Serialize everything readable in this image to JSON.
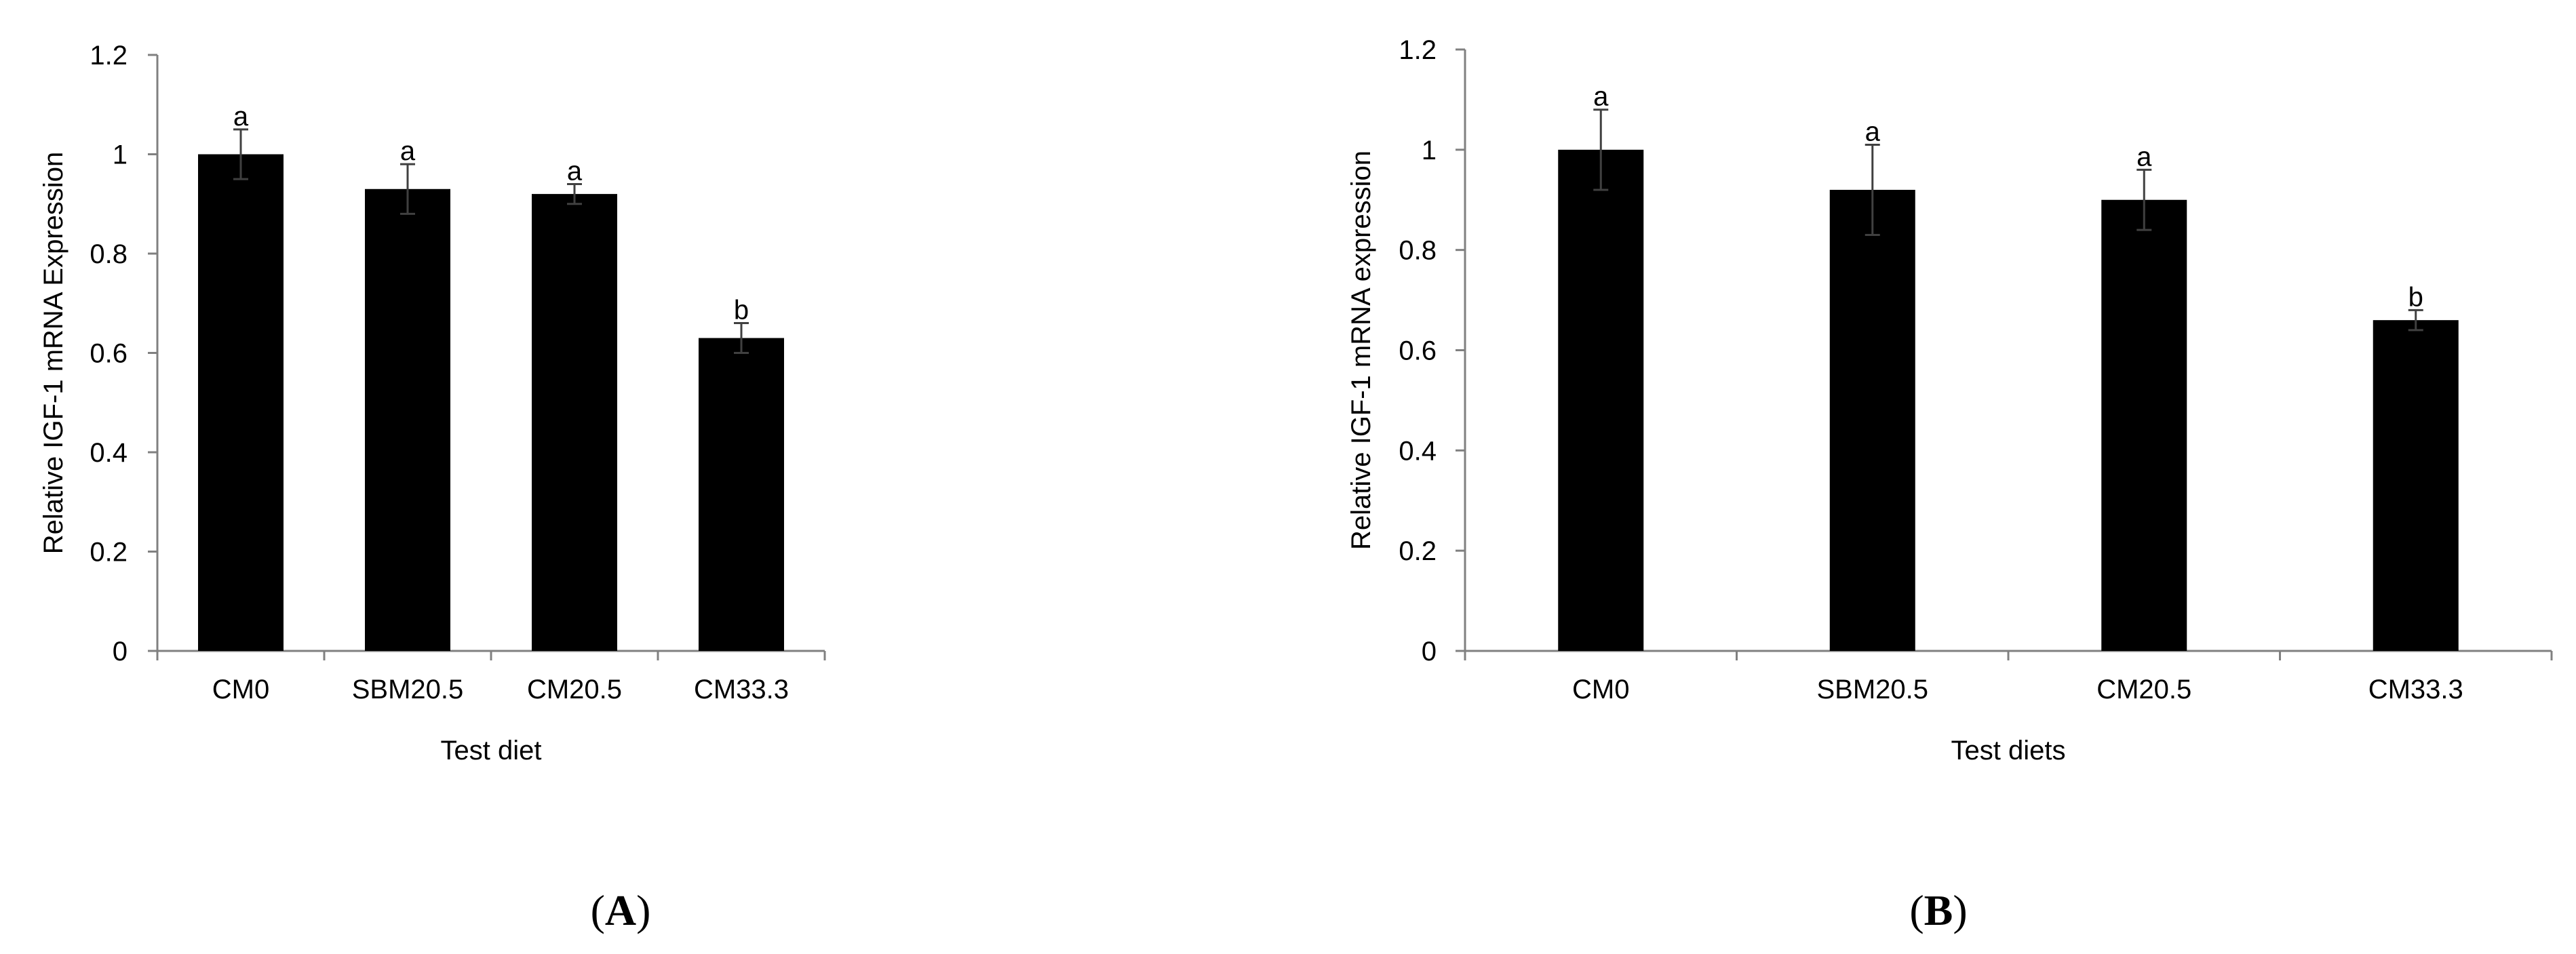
{
  "chart_data": [
    {
      "type": "bar",
      "panel_label": "(A)",
      "categories": [
        "CM0",
        "SBM20.5",
        "CM20.5",
        "CM33.3"
      ],
      "values": [
        1.0,
        0.93,
        0.92,
        0.63
      ],
      "error": [
        0.05,
        0.05,
        0.02,
        0.03
      ],
      "annotations": [
        "a",
        "a",
        "a",
        "b"
      ],
      "xlabel": "Test diet",
      "ylabel": "Relative  IGF-1 mRNA Expression",
      "ylim": [
        0,
        1.2
      ],
      "yticks": [
        "0",
        "0.2",
        "0.4",
        "0.6",
        "0.8",
        "1",
        "1.2"
      ],
      "bar_color": "#000000",
      "grid": false
    },
    {
      "type": "bar",
      "panel_label": "(B)",
      "categories": [
        "CM0",
        "SBM20.5",
        "CM20.5",
        "CM33.3"
      ],
      "values": [
        1.0,
        0.92,
        0.9,
        0.66
      ],
      "error": [
        0.08,
        0.09,
        0.06,
        0.02
      ],
      "annotations": [
        "a",
        "a",
        "a",
        "b"
      ],
      "xlabel": "Test diets",
      "ylabel": "Relative IGF-1 mRNA expression",
      "ylim": [
        0,
        1.2
      ],
      "yticks": [
        "0",
        "0.2",
        "0.4",
        "0.6",
        "0.8",
        "1",
        "1.2"
      ],
      "bar_color": "#000000",
      "grid": false
    }
  ]
}
